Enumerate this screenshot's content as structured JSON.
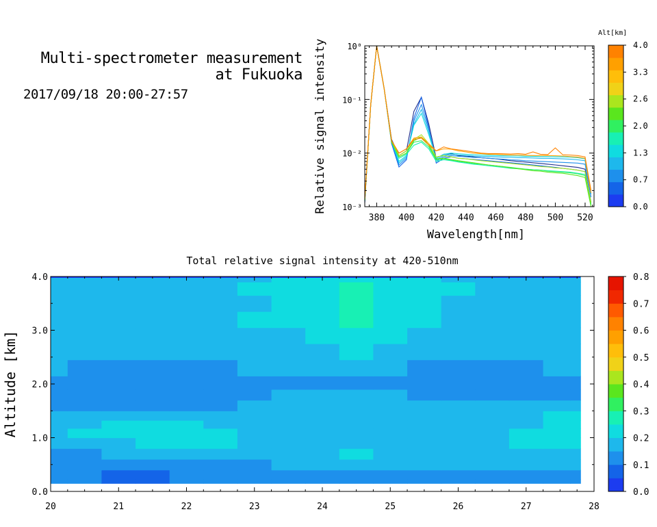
{
  "header": {
    "title_line1": "Multi-spectrometer measurement",
    "title_line2": "at Fukuoka",
    "datetime": "2017/09/18 20:00-27:57"
  },
  "chart_data": [
    {
      "type": "line",
      "xlabel": "Wavelength[nm]",
      "ylabel": "Relative signal intensity",
      "xlim": [
        372,
        526
      ],
      "ylim": [
        0.001,
        1
      ],
      "yscale": "log",
      "x_ticks": [
        "380",
        "400",
        "420",
        "440",
        "460",
        "480",
        "500",
        "520"
      ],
      "y_ticks": [
        "10⁻³",
        "10⁻²",
        "10⁻¹",
        "10⁰"
      ],
      "colorbar": {
        "label": "Alt[km]",
        "ticks": [
          "0.0",
          "0.7",
          "1.3",
          "2.0",
          "2.6",
          "3.3",
          "4.0"
        ],
        "colors": [
          "#1c3cf0",
          "#1464e8",
          "#1e90ec",
          "#1eb8ec",
          "#10dce0",
          "#18f0b4",
          "#30f060",
          "#5ae61e",
          "#aae61e",
          "#f0d218",
          "#ffbe0a",
          "#ffa000",
          "#ff8200"
        ]
      },
      "x": [
        372,
        376,
        380,
        385,
        390,
        395,
        400,
        405,
        410,
        415,
        420,
        425,
        430,
        435,
        440,
        445,
        450,
        455,
        460,
        465,
        470,
        475,
        480,
        485,
        490,
        495,
        500,
        505,
        510,
        515,
        520,
        524
      ],
      "series": [
        {
          "color": "#1c2c8c",
          "values": [
            0.0012,
            0.08,
            1.0,
            0.16,
            0.018,
            0.009,
            0.011,
            0.06,
            0.11,
            0.035,
            0.008,
            0.0095,
            0.0098,
            0.009,
            0.0088,
            0.0085,
            0.0082,
            0.008,
            0.0078,
            0.0075,
            0.0072,
            0.007,
            0.0068,
            0.0066,
            0.0064,
            0.0062,
            0.006,
            0.0058,
            0.0056,
            0.0054,
            0.005,
            0.0012
          ]
        },
        {
          "color": "#1464e8",
          "values": [
            0.0012,
            0.08,
            1.0,
            0.16,
            0.015,
            0.0055,
            0.0075,
            0.045,
            0.11,
            0.03,
            0.0065,
            0.008,
            0.0085,
            0.008,
            0.0078,
            0.0076,
            0.0074,
            0.0072,
            0.007,
            0.0068,
            0.0066,
            0.0064,
            0.0062,
            0.006,
            0.0058,
            0.0056,
            0.0054,
            0.0052,
            0.005,
            0.0048,
            0.0045,
            0.0012
          ]
        },
        {
          "color": "#1e90ec",
          "values": [
            0.0013,
            0.08,
            1.0,
            0.16,
            0.016,
            0.006,
            0.008,
            0.04,
            0.08,
            0.028,
            0.007,
            0.0085,
            0.009,
            0.0087,
            0.0085,
            0.0083,
            0.0082,
            0.008,
            0.0078,
            0.0077,
            0.0075,
            0.0074,
            0.0072,
            0.0071,
            0.007,
            0.0069,
            0.0068,
            0.0067,
            0.0066,
            0.0065,
            0.0062,
            0.0015
          ]
        },
        {
          "color": "#1eb8ec",
          "values": [
            0.0013,
            0.08,
            1.0,
            0.16,
            0.017,
            0.0065,
            0.0085,
            0.035,
            0.065,
            0.025,
            0.0075,
            0.009,
            0.0095,
            0.0092,
            0.009,
            0.0088,
            0.0087,
            0.0086,
            0.0085,
            0.0084,
            0.0083,
            0.0082,
            0.0082,
            0.0081,
            0.008,
            0.008,
            0.0079,
            0.0078,
            0.0077,
            0.0075,
            0.0072,
            0.0017
          ]
        },
        {
          "color": "#10dce0",
          "values": [
            0.0013,
            0.08,
            1.0,
            0.16,
            0.017,
            0.007,
            0.009,
            0.033,
            0.055,
            0.022,
            0.008,
            0.0095,
            0.01,
            0.0097,
            0.0095,
            0.0093,
            0.0092,
            0.0091,
            0.009,
            0.0089,
            0.0088,
            0.0088,
            0.0087,
            0.0087,
            0.0086,
            0.0086,
            0.0085,
            0.0085,
            0.0084,
            0.0082,
            0.0078,
            0.0018
          ]
        },
        {
          "color": "#18f0b4",
          "values": [
            0.0013,
            0.08,
            1.0,
            0.16,
            0.016,
            0.008,
            0.0095,
            0.014,
            0.016,
            0.012,
            0.007,
            0.0075,
            0.0072,
            0.0068,
            0.0065,
            0.0062,
            0.006,
            0.0058,
            0.0056,
            0.0054,
            0.0052,
            0.0051,
            0.005,
            0.0049,
            0.0048,
            0.0047,
            0.0046,
            0.0045,
            0.0044,
            0.0042,
            0.004,
            0.0011
          ]
        },
        {
          "color": "#30f060",
          "values": [
            0.0013,
            0.08,
            1.0,
            0.16,
            0.016,
            0.0085,
            0.01,
            0.016,
            0.017,
            0.013,
            0.0075,
            0.0078,
            0.0074,
            0.007,
            0.0067,
            0.0064,
            0.0062,
            0.006,
            0.0058,
            0.0056,
            0.0054,
            0.0052,
            0.005,
            0.0049,
            0.0048,
            0.0046,
            0.0045,
            0.0044,
            0.0043,
            0.0041,
            0.0038,
            0.0011
          ]
        },
        {
          "color": "#5ae61e",
          "values": [
            0.0013,
            0.08,
            1.0,
            0.16,
            0.016,
            0.0085,
            0.01,
            0.017,
            0.02,
            0.014,
            0.0078,
            0.008,
            0.0076,
            0.0072,
            0.0069,
            0.0066,
            0.0063,
            0.006,
            0.0058,
            0.0056,
            0.0053,
            0.0051,
            0.0049,
            0.0047,
            0.0046,
            0.0044,
            0.0043,
            0.0042,
            0.004,
            0.0038,
            0.0035,
            0.001
          ]
        },
        {
          "color": "#aae61e",
          "values": [
            0.0013,
            0.08,
            1.0,
            0.16,
            0.017,
            0.009,
            0.011,
            0.018,
            0.022,
            0.015,
            0.0085,
            0.009,
            0.0085,
            0.008,
            0.0078,
            0.0075,
            0.0072,
            0.007,
            0.0068,
            0.0066,
            0.0064,
            0.0062,
            0.006,
            0.0058,
            0.0056,
            0.0055,
            0.0053,
            0.0052,
            0.005,
            0.0048,
            0.0045,
            0.0012
          ]
        },
        {
          "color": "#ffa000",
          "values": [
            0.0014,
            0.08,
            1.0,
            0.16,
            0.017,
            0.01,
            0.012,
            0.019,
            0.02,
            0.015,
            0.011,
            0.012,
            0.0118,
            0.011,
            0.0105,
            0.01,
            0.0098,
            0.0095,
            0.0095,
            0.0093,
            0.0092,
            0.0092,
            0.0091,
            0.009,
            0.009,
            0.009,
            0.0089,
            0.0088,
            0.0086,
            0.0084,
            0.008,
            0.0018
          ]
        },
        {
          "color": "#ff8200",
          "values": [
            0.0014,
            0.08,
            1.0,
            0.16,
            0.017,
            0.01,
            0.012,
            0.018,
            0.019,
            0.014,
            0.011,
            0.013,
            0.012,
            0.0115,
            0.011,
            0.0105,
            0.01,
            0.0098,
            0.0098,
            0.0097,
            0.0096,
            0.0098,
            0.0095,
            0.0105,
            0.0095,
            0.0094,
            0.0125,
            0.0093,
            0.0092,
            0.009,
            0.0085,
            0.002
          ]
        }
      ]
    },
    {
      "type": "heatmap",
      "title": "Total relative signal intensity at 420-510nm",
      "ylabel": "Altitude [km]",
      "xlabel": "",
      "xlim": [
        20,
        28
      ],
      "ylim": [
        0,
        4
      ],
      "data_x_range": [
        20,
        27.8
      ],
      "data_y_range": [
        0.15,
        4.0
      ],
      "x_ticks": [
        "20",
        "21",
        "22",
        "23",
        "24",
        "25",
        "26",
        "27",
        "28"
      ],
      "y_ticks": [
        "0.0",
        "1.0",
        "2.0",
        "3.0",
        "4.0"
      ],
      "colorbar": {
        "ticks": [
          "0.0",
          "0.1",
          "0.2",
          "0.3",
          "0.4",
          "0.5",
          "0.6",
          "0.7",
          "0.8"
        ],
        "colors": [
          "#1c3cf0",
          "#1464e8",
          "#1e90ec",
          "#1eb8ec",
          "#10dce0",
          "#18f0b4",
          "#30f060",
          "#5ae61e",
          "#aae61e",
          "#f0d218",
          "#ffbe0a",
          "#ffa000",
          "#ff8200",
          "#ff5a00",
          "#f02800",
          "#e61400"
        ]
      },
      "times": [
        20.0,
        20.5,
        21.0,
        21.5,
        22.0,
        22.5,
        23.0,
        23.5,
        24.0,
        24.5,
        25.0,
        25.5,
        26.0,
        26.5,
        27.0,
        27.5,
        27.8
      ],
      "altitudes": [
        0.15,
        0.3,
        0.5,
        0.7,
        0.9,
        1.1,
        1.25,
        1.4,
        1.6,
        1.8,
        2.0,
        2.3,
        2.6,
        2.9,
        3.2,
        3.5,
        3.8,
        4.0
      ],
      "values": [
        [
          0.1,
          0.1,
          0.09,
          0.09,
          0.1,
          0.11,
          0.12,
          0.12,
          0.13,
          0.14,
          0.13,
          0.12,
          0.12,
          0.12,
          0.13,
          0.12,
          0.12
        ],
        [
          0.11,
          0.1,
          0.09,
          0.09,
          0.1,
          0.11,
          0.12,
          0.13,
          0.14,
          0.15,
          0.14,
          0.13,
          0.13,
          0.13,
          0.14,
          0.13,
          0.13
        ],
        [
          0.13,
          0.12,
          0.12,
          0.12,
          0.13,
          0.14,
          0.15,
          0.16,
          0.18,
          0.19,
          0.18,
          0.17,
          0.16,
          0.16,
          0.17,
          0.17,
          0.16
        ],
        [
          0.15,
          0.15,
          0.16,
          0.16,
          0.16,
          0.17,
          0.17,
          0.18,
          0.19,
          0.2,
          0.19,
          0.18,
          0.18,
          0.18,
          0.19,
          0.19,
          0.19
        ],
        [
          0.17,
          0.18,
          0.19,
          0.2,
          0.2,
          0.2,
          0.19,
          0.18,
          0.18,
          0.18,
          0.18,
          0.18,
          0.18,
          0.19,
          0.2,
          0.21,
          0.21
        ],
        [
          0.19,
          0.2,
          0.22,
          0.22,
          0.21,
          0.2,
          0.18,
          0.17,
          0.17,
          0.17,
          0.17,
          0.17,
          0.18,
          0.19,
          0.2,
          0.21,
          0.21
        ],
        [
          0.18,
          0.19,
          0.21,
          0.21,
          0.2,
          0.19,
          0.18,
          0.17,
          0.17,
          0.17,
          0.17,
          0.17,
          0.17,
          0.18,
          0.19,
          0.21,
          0.22
        ],
        [
          0.17,
          0.17,
          0.18,
          0.18,
          0.18,
          0.17,
          0.17,
          0.18,
          0.19,
          0.19,
          0.18,
          0.17,
          0.17,
          0.17,
          0.18,
          0.2,
          0.21
        ],
        [
          0.15,
          0.15,
          0.15,
          0.15,
          0.15,
          0.15,
          0.16,
          0.18,
          0.19,
          0.19,
          0.18,
          0.16,
          0.16,
          0.16,
          0.17,
          0.18,
          0.18
        ],
        [
          0.14,
          0.13,
          0.13,
          0.13,
          0.13,
          0.14,
          0.15,
          0.16,
          0.17,
          0.17,
          0.16,
          0.15,
          0.14,
          0.14,
          0.14,
          0.15,
          0.15
        ],
        [
          0.14,
          0.13,
          0.13,
          0.13,
          0.14,
          0.14,
          0.15,
          0.15,
          0.15,
          0.15,
          0.15,
          0.14,
          0.13,
          0.13,
          0.13,
          0.14,
          0.14
        ],
        [
          0.16,
          0.15,
          0.15,
          0.15,
          0.15,
          0.15,
          0.16,
          0.16,
          0.17,
          0.17,
          0.16,
          0.15,
          0.15,
          0.15,
          0.15,
          0.16,
          0.16
        ],
        [
          0.17,
          0.17,
          0.17,
          0.16,
          0.16,
          0.17,
          0.17,
          0.18,
          0.19,
          0.21,
          0.19,
          0.17,
          0.17,
          0.17,
          0.17,
          0.17,
          0.17
        ],
        [
          0.18,
          0.18,
          0.18,
          0.17,
          0.17,
          0.18,
          0.18,
          0.19,
          0.21,
          0.24,
          0.21,
          0.19,
          0.18,
          0.18,
          0.18,
          0.18,
          0.18
        ],
        [
          0.19,
          0.19,
          0.18,
          0.17,
          0.18,
          0.19,
          0.2,
          0.21,
          0.23,
          0.26,
          0.22,
          0.2,
          0.19,
          0.18,
          0.18,
          0.19,
          0.19
        ],
        [
          0.18,
          0.18,
          0.17,
          0.17,
          0.18,
          0.18,
          0.19,
          0.21,
          0.23,
          0.25,
          0.22,
          0.2,
          0.18,
          0.18,
          0.18,
          0.18,
          0.18
        ],
        [
          0.19,
          0.19,
          0.18,
          0.18,
          0.18,
          0.19,
          0.2,
          0.22,
          0.24,
          0.26,
          0.23,
          0.21,
          0.2,
          0.19,
          0.19,
          0.19,
          0.19
        ],
        [
          0.18,
          0.18,
          0.17,
          0.17,
          0.17,
          0.18,
          0.19,
          0.21,
          0.23,
          0.24,
          0.22,
          0.2,
          0.19,
          0.18,
          0.18,
          0.18,
          0.18
        ]
      ]
    }
  ]
}
